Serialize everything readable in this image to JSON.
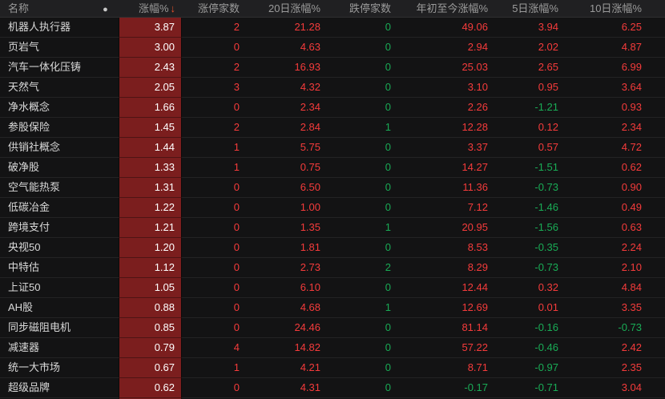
{
  "colors": {
    "up": "#f53b3b",
    "down": "#19ac56",
    "pct_cell_bg": "#7b1e1e",
    "pct_text": "#ffffff",
    "sort_arrow": "#e8522b"
  },
  "icons": {
    "indicator_dot": "●",
    "sort_down_arrow": "↓"
  },
  "table": {
    "header": {
      "name": "名称",
      "pct": "涨幅%",
      "limit_up": "涨停家数",
      "d20": "20日涨幅%",
      "limit_down": "跌停家数",
      "ytd": "年初至今涨幅%",
      "d5": "5日涨幅%",
      "d10": "10日涨幅%"
    },
    "sorted_by": "涨幅% descending",
    "rows": [
      {
        "name": "机器人执行器",
        "pct": "3.87",
        "limit_up": "2",
        "d20": "21.28",
        "limit_down": "0",
        "ytd": "49.06",
        "d5": "3.94",
        "d10": "6.25"
      },
      {
        "name": "页岩气",
        "pct": "3.00",
        "limit_up": "0",
        "d20": "4.63",
        "limit_down": "0",
        "ytd": "2.94",
        "d5": "2.02",
        "d10": "4.87"
      },
      {
        "name": "汽车一体化压铸",
        "pct": "2.43",
        "limit_up": "2",
        "d20": "16.93",
        "limit_down": "0",
        "ytd": "25.03",
        "d5": "2.65",
        "d10": "6.99"
      },
      {
        "name": "天然气",
        "pct": "2.05",
        "limit_up": "3",
        "d20": "4.32",
        "limit_down": "0",
        "ytd": "3.10",
        "d5": "0.95",
        "d10": "3.64"
      },
      {
        "name": "净水概念",
        "pct": "1.66",
        "limit_up": "0",
        "d20": "2.34",
        "limit_down": "0",
        "ytd": "2.26",
        "d5": "-1.21",
        "d10": "0.93"
      },
      {
        "name": "参股保险",
        "pct": "1.45",
        "limit_up": "2",
        "d20": "2.84",
        "limit_down": "1",
        "ytd": "12.28",
        "d5": "0.12",
        "d10": "2.34"
      },
      {
        "name": "供销社概念",
        "pct": "1.44",
        "limit_up": "1",
        "d20": "5.75",
        "limit_down": "0",
        "ytd": "3.37",
        "d5": "0.57",
        "d10": "4.72"
      },
      {
        "name": "破净股",
        "pct": "1.33",
        "limit_up": "1",
        "d20": "0.75",
        "limit_down": "0",
        "ytd": "14.27",
        "d5": "-1.51",
        "d10": "0.62"
      },
      {
        "name": "空气能热泵",
        "pct": "1.31",
        "limit_up": "0",
        "d20": "6.50",
        "limit_down": "0",
        "ytd": "11.36",
        "d5": "-0.73",
        "d10": "0.90"
      },
      {
        "name": "低碳冶金",
        "pct": "1.22",
        "limit_up": "0",
        "d20": "1.00",
        "limit_down": "0",
        "ytd": "7.12",
        "d5": "-1.46",
        "d10": "0.49"
      },
      {
        "name": "跨境支付",
        "pct": "1.21",
        "limit_up": "0",
        "d20": "1.35",
        "limit_down": "1",
        "ytd": "20.95",
        "d5": "-1.56",
        "d10": "0.63"
      },
      {
        "name": "央视50",
        "pct": "1.20",
        "limit_up": "0",
        "d20": "1.81",
        "limit_down": "0",
        "ytd": "8.53",
        "d5": "-0.35",
        "d10": "2.24"
      },
      {
        "name": "中特估",
        "pct": "1.12",
        "limit_up": "0",
        "d20": "2.73",
        "limit_down": "2",
        "ytd": "8.29",
        "d5": "-0.73",
        "d10": "2.10"
      },
      {
        "name": "上证50",
        "pct": "1.05",
        "limit_up": "0",
        "d20": "6.10",
        "limit_down": "0",
        "ytd": "12.44",
        "d5": "0.32",
        "d10": "4.84"
      },
      {
        "name": "AH股",
        "pct": "0.88",
        "limit_up": "0",
        "d20": "4.68",
        "limit_down": "1",
        "ytd": "12.69",
        "d5": "0.01",
        "d10": "3.35"
      },
      {
        "name": "同步磁阻电机",
        "pct": "0.85",
        "limit_up": "0",
        "d20": "24.46",
        "limit_down": "0",
        "ytd": "81.14",
        "d5": "-0.16",
        "d10": "-0.73"
      },
      {
        "name": "减速器",
        "pct": "0.79",
        "limit_up": "4",
        "d20": "14.82",
        "limit_down": "0",
        "ytd": "57.22",
        "d5": "-0.46",
        "d10": "2.42"
      },
      {
        "name": "统一大市场",
        "pct": "0.67",
        "limit_up": "1",
        "d20": "4.21",
        "limit_down": "0",
        "ytd": "8.71",
        "d5": "-0.97",
        "d10": "2.35"
      },
      {
        "name": "超级品牌",
        "pct": "0.62",
        "limit_up": "0",
        "d20": "4.31",
        "limit_down": "0",
        "ytd": "-0.17",
        "d5": "-0.71",
        "d10": "3.04"
      }
    ]
  }
}
